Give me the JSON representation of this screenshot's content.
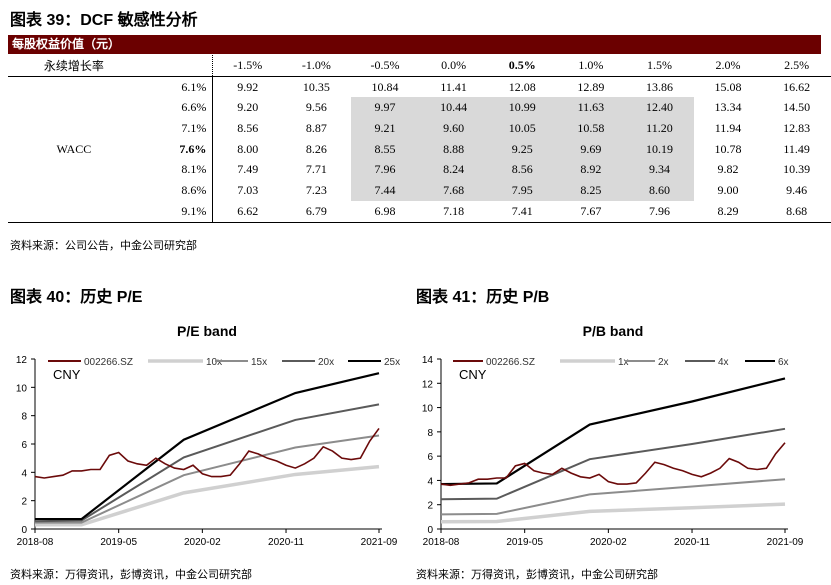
{
  "fig39": {
    "title": "图表 39：DCF 敏感性分析",
    "bar": "每股权益价值（元）",
    "growth_label": "永续增长率",
    "wacc_label": "WACC",
    "growth": [
      "-1.5%",
      "-1.0%",
      "-0.5%",
      "0.0%",
      "0.5%",
      "1.0%",
      "1.5%",
      "2.0%",
      "2.5%"
    ],
    "rows": [
      {
        "wacc": "6.1%",
        "v": [
          "9.92",
          "10.35",
          "10.84",
          "11.41",
          "12.08",
          "12.89",
          "13.86",
          "15.08",
          "16.62"
        ]
      },
      {
        "wacc": "6.6%",
        "v": [
          "9.20",
          "9.56",
          "9.97",
          "10.44",
          "10.99",
          "11.63",
          "12.40",
          "13.34",
          "14.50"
        ]
      },
      {
        "wacc": "7.1%",
        "v": [
          "8.56",
          "8.87",
          "9.21",
          "9.60",
          "10.05",
          "10.58",
          "11.20",
          "11.94",
          "12.83"
        ]
      },
      {
        "wacc": "7.6%",
        "v": [
          "8.00",
          "8.26",
          "8.55",
          "8.88",
          "9.25",
          "9.69",
          "10.19",
          "10.78",
          "11.49"
        ]
      },
      {
        "wacc": "8.1%",
        "v": [
          "7.49",
          "7.71",
          "7.96",
          "8.24",
          "8.56",
          "8.92",
          "9.34",
          "9.82",
          "10.39"
        ]
      },
      {
        "wacc": "8.6%",
        "v": [
          "7.03",
          "7.23",
          "7.44",
          "7.68",
          "7.95",
          "8.25",
          "8.60",
          "9.00",
          "9.46"
        ]
      },
      {
        "wacc": "9.1%",
        "v": [
          "6.62",
          "6.79",
          "6.98",
          "7.18",
          "7.41",
          "7.67",
          "7.96",
          "8.29",
          "8.68"
        ]
      }
    ],
    "source": "资料来源：公司公告，中金公司研究部"
  },
  "fig40": {
    "title": "图表 40：历史 P/E",
    "source": "资料来源：万得资讯，彭博资讯，中金公司研究部"
  },
  "fig41": {
    "title": "图表 41：历史 P/B",
    "source": "资料来源：万得资讯，彭博资讯，中金公司研究部"
  },
  "colors": {
    "header_bar": "#6b0000",
    "price": "#6b0a0a",
    "band1": "#d0d0d0",
    "band2": "#8c8c8c",
    "band3": "#5a5a5a",
    "band4": "#000000",
    "shade": "#d9d9d9"
  },
  "chart_data": [
    {
      "type": "line",
      "title": "P/E band",
      "unit_label": "CNY",
      "ylim": [
        0,
        12
      ],
      "yticks": [
        0,
        2,
        4,
        6,
        8,
        10,
        12
      ],
      "xticks": [
        "2018-08",
        "2019-05",
        "2020-02",
        "2020-11",
        "2021-09"
      ],
      "legend": "top",
      "price": {
        "name": "002266.SZ",
        "dates": [
          "2018-08",
          "2018-09",
          "2018-10",
          "2018-11",
          "2018-12",
          "2019-01",
          "2019-02",
          "2019-03",
          "2019-04",
          "2019-05",
          "2019-06",
          "2019-07",
          "2019-08",
          "2019-09",
          "2019-10",
          "2019-11",
          "2019-12",
          "2020-01",
          "2020-02",
          "2020-03",
          "2020-04",
          "2020-05",
          "2020-06",
          "2020-07",
          "2020-08",
          "2020-09",
          "2020-10",
          "2020-11",
          "2020-12",
          "2021-01",
          "2021-02",
          "2021-03",
          "2021-04",
          "2021-05",
          "2021-06",
          "2021-07",
          "2021-08",
          "2021-09"
        ],
        "values": [
          3.7,
          3.6,
          3.7,
          3.8,
          4.1,
          4.1,
          4.2,
          4.2,
          5.2,
          5.4,
          4.8,
          4.6,
          4.5,
          5.0,
          4.6,
          4.3,
          4.2,
          4.5,
          3.9,
          3.7,
          3.7,
          3.8,
          4.6,
          5.5,
          5.3,
          5.0,
          4.8,
          4.5,
          4.3,
          4.6,
          5.0,
          5.8,
          5.5,
          5.0,
          4.9,
          5.0,
          6.2,
          7.1
        ]
      },
      "bands": [
        {
          "name": "10x",
          "dates": [
            "2018-08",
            "2019-01",
            "2019-12",
            "2020-12",
            "2021-09"
          ],
          "values": [
            0.3,
            0.3,
            2.55,
            3.85,
            4.4
          ]
        },
        {
          "name": "15x",
          "dates": [
            "2018-08",
            "2019-01",
            "2019-12",
            "2020-12",
            "2021-09"
          ],
          "values": [
            0.45,
            0.45,
            3.8,
            5.75,
            6.6
          ]
        },
        {
          "name": "20x",
          "dates": [
            "2018-08",
            "2019-01",
            "2019-12",
            "2020-12",
            "2021-09"
          ],
          "values": [
            0.55,
            0.6,
            5.05,
            7.7,
            8.8
          ]
        },
        {
          "name": "25x",
          "dates": [
            "2018-08",
            "2019-01",
            "2019-12",
            "2020-12",
            "2021-09"
          ],
          "values": [
            0.7,
            0.7,
            6.3,
            9.6,
            11.0
          ]
        }
      ]
    },
    {
      "type": "line",
      "title": "P/B band",
      "unit_label": "CNY",
      "ylim": [
        0,
        14
      ],
      "yticks": [
        0,
        2,
        4,
        6,
        8,
        10,
        12,
        14
      ],
      "xticks": [
        "2018-08",
        "2019-05",
        "2020-02",
        "2020-11",
        "2021-09"
      ],
      "legend": "top",
      "price": {
        "name": "002266.SZ",
        "dates": [
          "2018-08",
          "2018-09",
          "2018-10",
          "2018-11",
          "2018-12",
          "2019-01",
          "2019-02",
          "2019-03",
          "2019-04",
          "2019-05",
          "2019-06",
          "2019-07",
          "2019-08",
          "2019-09",
          "2019-10",
          "2019-11",
          "2019-12",
          "2020-01",
          "2020-02",
          "2020-03",
          "2020-04",
          "2020-05",
          "2020-06",
          "2020-07",
          "2020-08",
          "2020-09",
          "2020-10",
          "2020-11",
          "2020-12",
          "2021-01",
          "2021-02",
          "2021-03",
          "2021-04",
          "2021-05",
          "2021-06",
          "2021-07",
          "2021-08",
          "2021-09"
        ],
        "values": [
          3.7,
          3.6,
          3.7,
          3.8,
          4.1,
          4.1,
          4.2,
          4.2,
          5.2,
          5.4,
          4.8,
          4.6,
          4.5,
          5.0,
          4.6,
          4.3,
          4.2,
          4.5,
          3.9,
          3.7,
          3.7,
          3.8,
          4.6,
          5.5,
          5.3,
          5.0,
          4.8,
          4.5,
          4.3,
          4.6,
          5.0,
          5.8,
          5.5,
          5.0,
          4.9,
          5.0,
          6.2,
          7.1
        ]
      },
      "bands": [
        {
          "name": "1x",
          "dates": [
            "2018-08",
            "2019-02",
            "2019-12",
            "2020-11",
            "2021-09"
          ],
          "values": [
            0.6,
            0.62,
            1.45,
            1.75,
            2.05
          ]
        },
        {
          "name": "2x",
          "dates": [
            "2018-08",
            "2019-02",
            "2019-12",
            "2020-11",
            "2021-09"
          ],
          "values": [
            1.2,
            1.25,
            2.85,
            3.5,
            4.1
          ]
        },
        {
          "name": "4x",
          "dates": [
            "2018-08",
            "2019-02",
            "2019-12",
            "2020-11",
            "2021-09"
          ],
          "values": [
            2.45,
            2.5,
            5.75,
            7.0,
            8.25
          ]
        },
        {
          "name": "6x",
          "dates": [
            "2018-08",
            "2019-02",
            "2019-12",
            "2020-11",
            "2021-09"
          ],
          "values": [
            3.7,
            3.75,
            8.6,
            10.5,
            12.4
          ]
        }
      ]
    }
  ]
}
